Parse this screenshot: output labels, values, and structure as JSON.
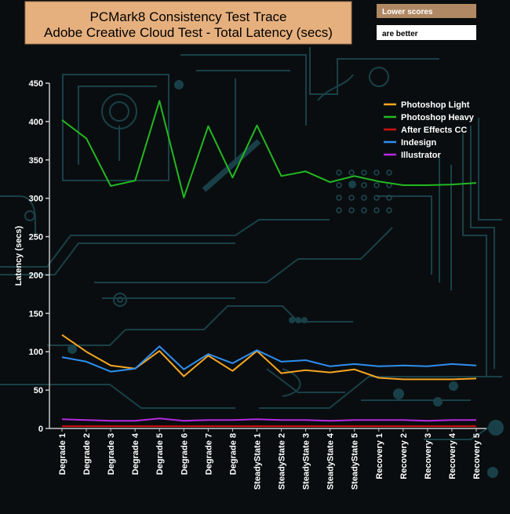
{
  "title_line1": "PCMark8 Consistency Test Trace",
  "title_line2": "Adobe Creative Cloud Test -  Total Latency (secs)",
  "note_line1": "Lower scores",
  "note_line2": "are better",
  "colors": {
    "title_bg": "#e6b07e",
    "note_bg": "#b08964",
    "background": "#0a0d0f",
    "circuit": "#1c4a52",
    "axis": "#c8c8c8"
  },
  "chart_data": {
    "type": "line",
    "title": "PCMark8 Consistency Test Trace Adobe Creative Cloud Test -  Total Latency (secs)",
    "xlabel": "",
    "ylabel": "Latency (secs)",
    "ylim": [
      0,
      450
    ],
    "yticks": [
      "0",
      "50",
      "100",
      "150",
      "200",
      "250",
      "300",
      "350",
      "400",
      "450"
    ],
    "grid": false,
    "legend_position": "top-right",
    "categories": [
      "Degrade 1",
      "Degrade 2",
      "Degrade 3",
      "Degrade 4",
      "Degrade 5",
      "Degrade 6",
      "Degrade 7",
      "Degrade 8",
      "SteadyState 1",
      "SteadyState 2",
      "SteadyState 3",
      "SteadyState 4",
      "SteadyState 5",
      "Recovery 1",
      "Recovery 2",
      "Recovery 3",
      "Recovery 4",
      "Recovery 5"
    ],
    "series": [
      {
        "name": "Photoshop Light",
        "color": "#f5a623",
        "values": [
          122,
          100,
          82,
          78,
          101,
          68,
          95,
          75,
          101,
          72,
          76,
          73,
          77,
          66,
          64,
          64,
          64,
          65
        ]
      },
      {
        "name": " Photoshop Heavy",
        "color": "#22b822",
        "values": [
          402,
          378,
          316,
          323,
          427,
          301,
          394,
          327,
          395,
          329,
          335,
          321,
          329,
          322,
          317,
          317,
          318,
          320
        ]
      },
      {
        "name": "After Effects CC",
        "color": "#d01010",
        "values": [
          3,
          3,
          3,
          3,
          3,
          3,
          3,
          3,
          3,
          3,
          3,
          3,
          3,
          3,
          3,
          3,
          3,
          3
        ]
      },
      {
        "name": "Indesign",
        "color": "#2e8ff0",
        "values": [
          93,
          87,
          74,
          78,
          107,
          77,
          97,
          85,
          102,
          87,
          89,
          81,
          84,
          81,
          82,
          81,
          84,
          82
        ]
      },
      {
        "name": "Illustrator",
        "color": "#b52be0",
        "values": [
          12,
          11,
          10,
          10,
          13,
          10,
          11,
          11,
          12,
          11,
          11,
          10,
          11,
          11,
          11,
          10,
          11,
          11
        ]
      }
    ]
  }
}
